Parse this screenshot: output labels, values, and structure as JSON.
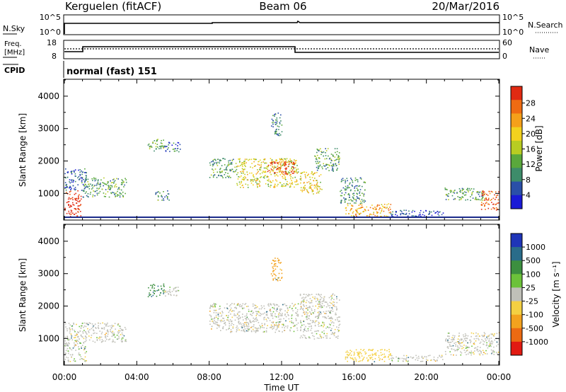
{
  "header": {
    "station": "Kerguelen (fitACF)",
    "beam": "Beam 06",
    "date": "20/Mar/2016"
  },
  "strip_panels": {
    "nsky": {
      "label": "N.Sky",
      "ticks_left": [
        "10^5",
        "10^0"
      ],
      "ticks_right": [
        "10^5",
        "10^0"
      ],
      "right_label": "N.Search"
    },
    "freq": {
      "label_line1": "Freq.",
      "label_line2": "[MHz]",
      "ticks_left": [
        "18",
        "8"
      ],
      "ticks_right": [
        "60",
        "0"
      ],
      "right_label": "Nave"
    },
    "cpid": {
      "label": "CPID",
      "program": "normal (fast) 151"
    }
  },
  "x_axis": {
    "label": "Time UT",
    "ticks": [
      "00:00",
      "04:00",
      "08:00",
      "12:00",
      "16:00",
      "20:00",
      "00:00"
    ]
  },
  "y_axis": {
    "label": "Slant Range [km]",
    "ticks": [
      "1000",
      "2000",
      "3000",
      "4000"
    ]
  },
  "power_scale": {
    "label": "Power [dB]",
    "ticks": [
      "4",
      "8",
      "12",
      "16",
      "20",
      "24",
      "28"
    ],
    "colors": [
      "#1a1ad6",
      "#2a4fa8",
      "#3d8c6a",
      "#5aa83c",
      "#b8cc22",
      "#f2d21e",
      "#f5a01a",
      "#ef6b12",
      "#e12a12"
    ]
  },
  "velocity_scale": {
    "label": "Velocity [m s⁻¹]",
    "ticks": [
      "1000",
      "500",
      "100",
      "25",
      "-25",
      "-100",
      "-500",
      "-1000"
    ],
    "colors": [
      "#1f35b8",
      "#2a6c8a",
      "#3c8f3f",
      "#6cc23a",
      "#c0c0b8",
      "#f4d042",
      "#f3a21e",
      "#ec6a12",
      "#e21a12"
    ]
  },
  "chart_data": [
    {
      "type": "line",
      "title": "N.Sky",
      "x": [
        "00:00",
        "00:08",
        "24:00"
      ],
      "series": [
        {
          "name": "N.Sky",
          "values": [
            0,
            5,
            5
          ]
        },
        {
          "name": "N.Search",
          "values": [
            0,
            5,
            5
          ]
        }
      ],
      "ylim": [
        0,
        5
      ]
    },
    {
      "type": "line",
      "title": "Freq. [MHz]",
      "x": [
        "00:00",
        "01:00",
        "01:00",
        "13:00",
        "13:00",
        "24:00"
      ],
      "series": [
        {
          "name": "Freq.",
          "values": [
            11,
            11,
            14,
            14,
            11,
            11
          ]
        },
        {
          "name": "Nave",
          "values": [
            40,
            40,
            40,
            40,
            40,
            40
          ]
        }
      ],
      "ylim": [
        8,
        18
      ]
    },
    {
      "type": "heatmap",
      "title": "Power [dB]",
      "xlabel": "Time UT",
      "ylabel": "Slant Range [km]",
      "xlim": [
        0,
        24
      ],
      "ylim": [
        200,
        4500
      ],
      "zlim": [
        0,
        30
      ],
      "blobs": [
        {
          "t0": 0.0,
          "t1": 0.9,
          "r0": 300,
          "r1": 1100,
          "dB": 29
        },
        {
          "t0": 0.0,
          "t1": 1.2,
          "r0": 1100,
          "r1": 1800,
          "dB": 6
        },
        {
          "t0": 1.0,
          "t1": 3.4,
          "r0": 900,
          "r1": 1500,
          "dB": 10
        },
        {
          "t0": 4.6,
          "t1": 5.5,
          "r0": 2300,
          "r1": 2700,
          "dB": 12
        },
        {
          "t0": 5.5,
          "t1": 6.4,
          "r0": 2300,
          "r1": 2600,
          "dB": 6
        },
        {
          "t0": 5.0,
          "t1": 5.8,
          "r0": 800,
          "r1": 1100,
          "dB": 9
        },
        {
          "t0": 8.0,
          "t1": 9.5,
          "r0": 1500,
          "r1": 2100,
          "dB": 10
        },
        {
          "t0": 9.5,
          "t1": 12.9,
          "r0": 1200,
          "r1": 2100,
          "dB": 17
        },
        {
          "t0": 11.2,
          "t1": 12.7,
          "r0": 1600,
          "r1": 2000,
          "dB": 28
        },
        {
          "t0": 11.4,
          "t1": 12.0,
          "r0": 2800,
          "r1": 3500,
          "dB": 8
        },
        {
          "t0": 13.0,
          "t1": 14.2,
          "r0": 1000,
          "r1": 1700,
          "dB": 18
        },
        {
          "t0": 13.8,
          "t1": 15.2,
          "r0": 1700,
          "r1": 2400,
          "dB": 10
        },
        {
          "t0": 15.2,
          "t1": 16.6,
          "r0": 700,
          "r1": 1500,
          "dB": 9
        },
        {
          "t0": 15.5,
          "t1": 18.0,
          "r0": 300,
          "r1": 700,
          "dB": 21
        },
        {
          "t0": 18.0,
          "t1": 21.0,
          "r0": 300,
          "r1": 500,
          "dB": 5
        },
        {
          "t0": 21.0,
          "t1": 23.2,
          "r0": 800,
          "r1": 1200,
          "dB": 10
        },
        {
          "t0": 23.0,
          "t1": 24.0,
          "r0": 500,
          "r1": 1100,
          "dB": 26
        }
      ]
    },
    {
      "type": "heatmap",
      "title": "Velocity [m s⁻¹]",
      "xlabel": "Time UT",
      "ylabel": "Slant Range [km]",
      "xlim": [
        0,
        24
      ],
      "ylim": [
        200,
        4500
      ],
      "zlim": [
        -1000,
        1000
      ],
      "blobs": [
        {
          "t0": 0.0,
          "t1": 3.4,
          "r0": 900,
          "r1": 1500,
          "v": 0
        },
        {
          "t0": 0.0,
          "t1": 1.2,
          "r0": 300,
          "r1": 900,
          "v": 0
        },
        {
          "t0": 4.6,
          "t1": 5.5,
          "r0": 2300,
          "r1": 2700,
          "v": 80
        },
        {
          "t0": 5.5,
          "t1": 6.4,
          "r0": 2300,
          "r1": 2600,
          "v": 0
        },
        {
          "t0": 8.0,
          "t1": 12.9,
          "r0": 1200,
          "r1": 2100,
          "v": 0
        },
        {
          "t0": 11.4,
          "t1": 12.0,
          "r0": 2800,
          "r1": 3500,
          "v": -150
        },
        {
          "t0": 13.0,
          "t1": 15.2,
          "r0": 1000,
          "r1": 2400,
          "v": 0
        },
        {
          "t0": 15.5,
          "t1": 18.0,
          "r0": 300,
          "r1": 700,
          "v": -60
        },
        {
          "t0": 18.0,
          "t1": 21.0,
          "r0": 300,
          "r1": 500,
          "v": 0
        },
        {
          "t0": 21.0,
          "t1": 24.0,
          "r0": 500,
          "r1": 1200,
          "v": 0
        }
      ]
    }
  ]
}
